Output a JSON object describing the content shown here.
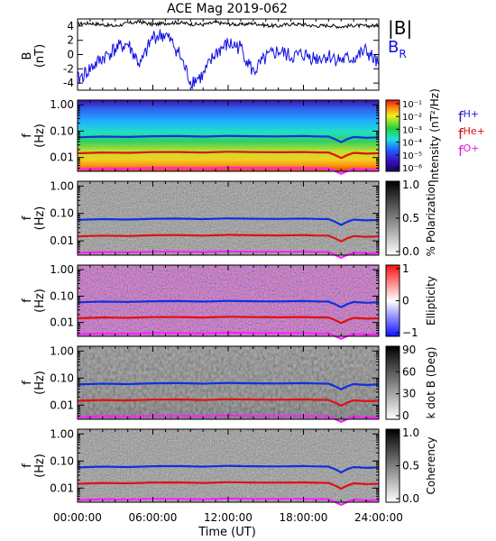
{
  "title": "ACE Mag 2019-062",
  "x_axis": {
    "label": "Time (UT)",
    "tick_labels": [
      "00:00:00",
      "06:00:00",
      "12:00:00",
      "18:00:00",
      "24:00:00"
    ],
    "xlim": [
      0,
      24
    ]
  },
  "legend_b": {
    "b_total": "|B|",
    "b_r": "B",
    "b_r_sub": "R"
  },
  "legend_f": [
    {
      "main": "f",
      "sub": "H+",
      "color": "#2020d0"
    },
    {
      "main": "f",
      "sub": "He+",
      "color": "#d01010"
    },
    {
      "main": "f",
      "sub": "O+",
      "color": "#e020e0"
    }
  ],
  "freq_axis": {
    "ylabel": "f",
    "unit": "(Hz)",
    "tick_labels": [
      "1.00",
      "0.10",
      "0.01"
    ]
  },
  "colors": {
    "b_total": "#000000",
    "b_r": "#1010e0",
    "f_h": "#1030e0",
    "f_he": "#e01010",
    "f_o": "#ff20ff"
  },
  "chart_data": [
    {
      "type": "line",
      "panel": "B field",
      "ylabel": "B",
      "yunit": "(nT)",
      "ylim": [
        -5,
        5
      ],
      "y_tick_labels": [
        "4",
        "2",
        "0",
        "-2",
        "-4"
      ],
      "x_hours": [
        0,
        1,
        2,
        3,
        4,
        5,
        6,
        7,
        8,
        9,
        10,
        11,
        12,
        13,
        14,
        15,
        16,
        17,
        18,
        19,
        20,
        21,
        22,
        23,
        24
      ],
      "series": [
        {
          "name": "|B|",
          "values": [
            4.3,
            4.4,
            4.2,
            4.0,
            4.4,
            4.6,
            4.2,
            4.4,
            4.5,
            4.3,
            4.2,
            4.5,
            4.3,
            4.2,
            4.4,
            4.1,
            4.0,
            4.3,
            4.2,
            4.0,
            4.1,
            3.9,
            4.1,
            4.0,
            4.1
          ]
        },
        {
          "name": "B_R",
          "values": [
            -3.6,
            -2.0,
            -0.5,
            0.8,
            1.5,
            -1.5,
            2.5,
            2.8,
            0.5,
            -3.8,
            -3.0,
            0.2,
            1.5,
            1.0,
            -2.5,
            -0.5,
            0.5,
            -0.3,
            0.0,
            -0.5,
            -0.2,
            -0.8,
            -0.5,
            0.5,
            -1.5
          ]
        }
      ]
    },
    {
      "type": "heatmap",
      "panel": "Intensity",
      "colorbar_label": "Intensity (nT²/Hz)",
      "colorbar_tick_labels": [
        "10⁻¹",
        "10⁻²",
        "10⁻³",
        "10⁻⁴",
        "10⁻⁵",
        "10⁻⁶"
      ],
      "ylim": [
        0.003,
        1.5
      ],
      "yscale": "log"
    },
    {
      "type": "heatmap",
      "panel": "% Polarization",
      "colorbar_label": "% Polarization",
      "colorbar_tick_labels": [
        "1.0",
        "0.5",
        "0.0"
      ]
    },
    {
      "type": "heatmap",
      "panel": "Ellipticity",
      "colorbar_label": "Ellipticity",
      "colorbar_tick_labels": [
        "1",
        "0",
        "−1"
      ]
    },
    {
      "type": "heatmap",
      "panel": "k dot B",
      "colorbar_label": "k dot B (Deg)",
      "colorbar_tick_labels": [
        "90",
        "60",
        "30",
        "0"
      ]
    },
    {
      "type": "heatmap",
      "panel": "Coherency",
      "colorbar_label": "Coherency",
      "colorbar_tick_labels": [
        "1.0",
        "0.5",
        "0.0"
      ]
    },
    {
      "type": "line",
      "panel": "gyrofrequency overlays (all spectral panels)",
      "x_hours": [
        0,
        2,
        4,
        6,
        8,
        10,
        12,
        14,
        16,
        18,
        19,
        20,
        20.5,
        21,
        21.5,
        22,
        23,
        24
      ],
      "series": [
        {
          "name": "f_H+",
          "values": [
            0.058,
            0.062,
            0.06,
            0.064,
            0.065,
            0.062,
            0.066,
            0.064,
            0.063,
            0.065,
            0.063,
            0.062,
            0.05,
            0.038,
            0.05,
            0.06,
            0.056,
            0.058
          ]
        },
        {
          "name": "f_He+",
          "values": [
            0.0145,
            0.0155,
            0.015,
            0.016,
            0.0162,
            0.0155,
            0.0165,
            0.016,
            0.0158,
            0.0162,
            0.0157,
            0.0155,
            0.0125,
            0.0095,
            0.0125,
            0.015,
            0.014,
            0.0145
          ]
        },
        {
          "name": "f_O+",
          "values": [
            0.0036,
            0.0039,
            0.0038,
            0.004,
            0.004,
            0.0039,
            0.0041,
            0.004,
            0.004,
            0.004,
            0.0039,
            0.0039,
            0.0031,
            0.0024,
            0.0031,
            0.0038,
            0.0035,
            0.0036
          ]
        }
      ]
    }
  ]
}
